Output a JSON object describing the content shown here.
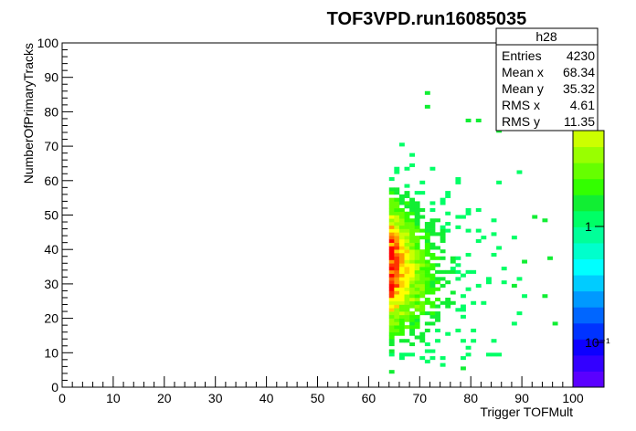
{
  "chart_data": {
    "type": "heatmap",
    "title": "TOF3VPD.run16085035",
    "xlabel": "Trigger TOFMult",
    "ylabel": "NumberOfPrimaryTracks",
    "xlim": [
      0,
      100
    ],
    "ylim": [
      0,
      100
    ],
    "x_ticks": [
      "0",
      "10",
      "20",
      "30",
      "40",
      "50",
      "60",
      "70",
      "80",
      "90",
      "100"
    ],
    "y_ticks": [
      "0",
      "10",
      "20",
      "30",
      "40",
      "50",
      "60",
      "70",
      "80",
      "90",
      "100"
    ],
    "bin_width": 1,
    "colorbar": {
      "scale": "log",
      "labels": [
        "1",
        "10⁻¹"
      ],
      "palette": [
        "#5a00ff",
        "#3300ff",
        "#0d00ff",
        "#0033ff",
        "#0066ff",
        "#0099ff",
        "#00ccff",
        "#00ffff",
        "#00ffcc",
        "#00ff99",
        "#00ff66",
        "#11ee33",
        "#33ff00",
        "#66ff00",
        "#99ff00",
        "#ccff00"
      ]
    },
    "stats": {
      "name": "h28",
      "rows": [
        {
          "label": "Entries",
          "value": "4230"
        },
        {
          "label": "Mean x",
          "value": "68.34"
        },
        {
          "label": "Mean y",
          "value": "35.32"
        },
        {
          "label": "RMS x",
          "value": "4.61"
        },
        {
          "label": "RMS y",
          "value": "11.35"
        }
      ]
    },
    "distribution": {
      "x_onset": 64,
      "mean_x": 68.34,
      "mean_y": 35.32,
      "rms_x": 4.61,
      "rms_y": 11.35,
      "entries": 4230
    },
    "outlier_bins": [
      {
        "x": 71,
        "y": 85
      },
      {
        "x": 71,
        "y": 81
      },
      {
        "x": 64,
        "y": 4
      },
      {
        "x": 78,
        "y": 5
      },
      {
        "x": 96,
        "y": 18
      },
      {
        "x": 94,
        "y": 26
      },
      {
        "x": 92,
        "y": 49
      },
      {
        "x": 94,
        "y": 48
      },
      {
        "x": 90,
        "y": 36
      },
      {
        "x": 85,
        "y": 74
      },
      {
        "x": 79,
        "y": 77
      },
      {
        "x": 81,
        "y": 77
      },
      {
        "x": 88,
        "y": 29
      },
      {
        "x": 95,
        "y": 37
      }
    ]
  }
}
